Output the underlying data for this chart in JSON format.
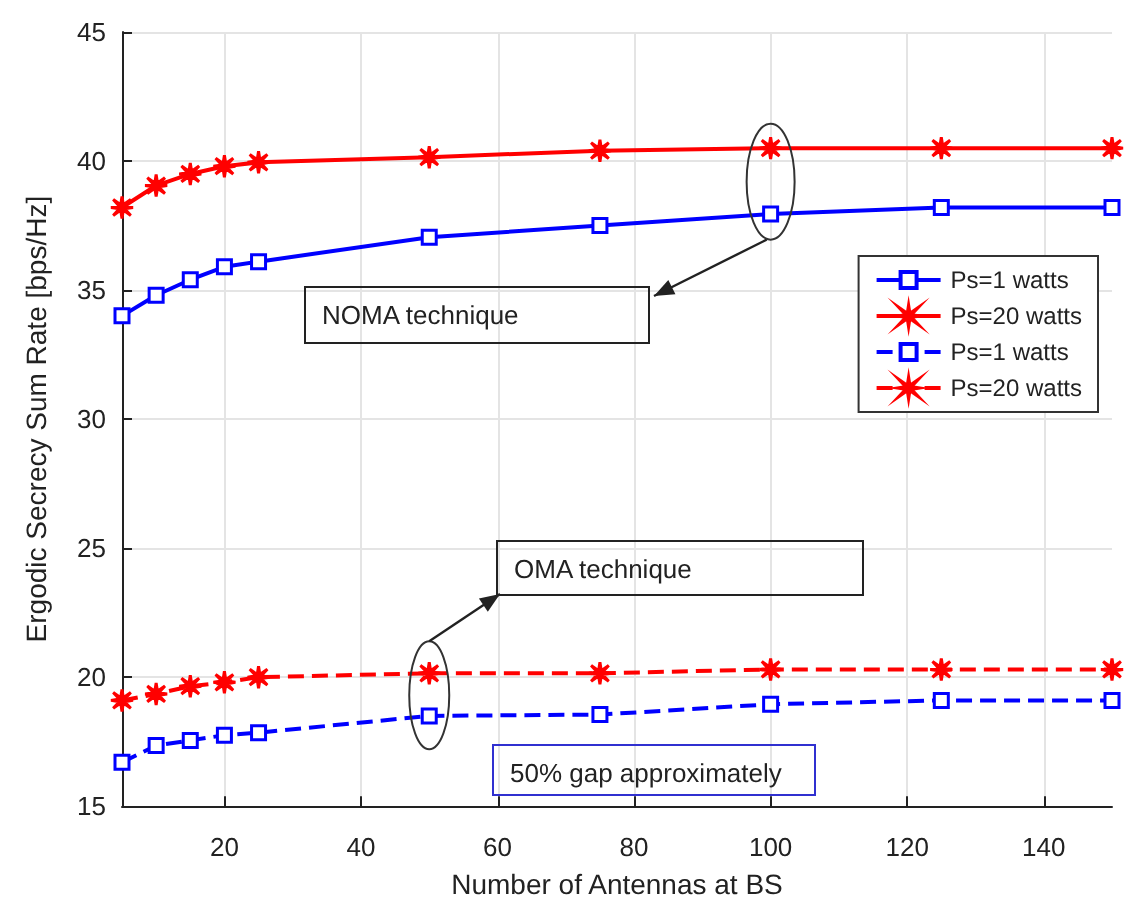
{
  "chart_data": {
    "type": "line",
    "xlabel": "Number of Antennas at BS",
    "ylabel": "Ergodic Secrecy Sum Rate [bps/Hz]",
    "x": [
      5,
      10,
      15,
      20,
      25,
      50,
      75,
      100,
      125,
      150
    ],
    "series": [
      {
        "name": "Ps=1 watts",
        "color": "#0000ff",
        "marker": "square",
        "line_style": "solid",
        "values": [
          34.0,
          34.8,
          35.4,
          35.9,
          36.1,
          37.05,
          37.5,
          37.95,
          38.2,
          38.2
        ]
      },
      {
        "name": "Ps=20 watts",
        "color": "#ff0000",
        "marker": "star",
        "line_style": "solid",
        "values": [
          38.2,
          39.05,
          39.5,
          39.8,
          39.95,
          40.15,
          40.4,
          40.5,
          40.5,
          40.5
        ]
      },
      {
        "name": "Ps=1 watts",
        "color": "#0000ff",
        "marker": "square",
        "line_style": "dashed",
        "values": [
          16.7,
          17.35,
          17.55,
          17.75,
          17.85,
          18.5,
          18.55,
          18.95,
          19.1,
          19.1
        ]
      },
      {
        "name": "Ps=20 watts",
        "color": "#ff0000",
        "marker": "star",
        "line_style": "dashed",
        "values": [
          19.1,
          19.35,
          19.65,
          19.8,
          20.0,
          20.15,
          20.15,
          20.3,
          20.3,
          20.3
        ]
      }
    ],
    "xlim": [
      5,
      150
    ],
    "xticks": [
      20,
      40,
      60,
      80,
      100,
      120,
      140
    ],
    "ylim": [
      15,
      45
    ],
    "yticks": [
      15,
      20,
      25,
      30,
      35,
      40,
      45
    ],
    "grid": true,
    "legend": "top right",
    "annotations": [
      "NOMA technique",
      "OMA technique",
      "50% gap approximately"
    ]
  }
}
